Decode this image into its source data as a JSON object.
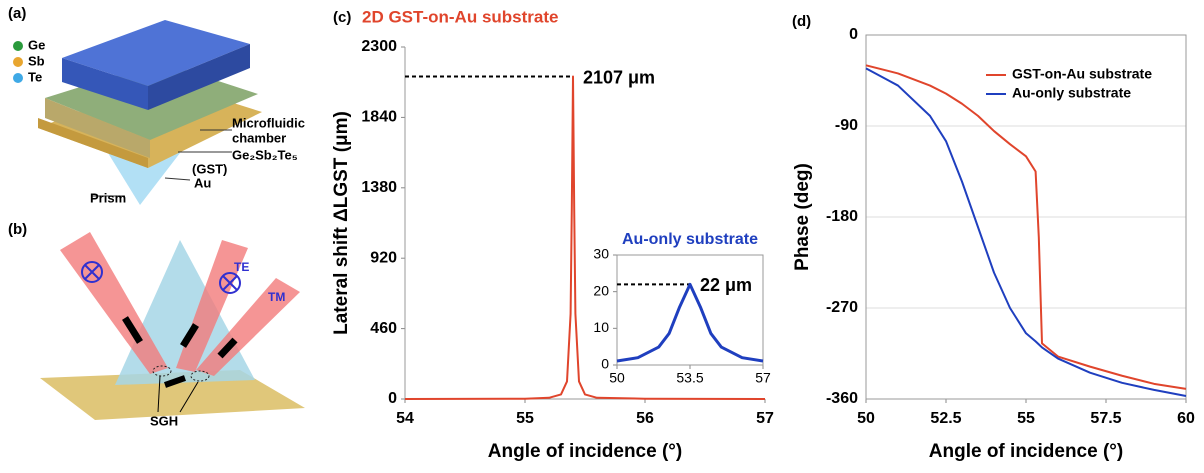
{
  "chart_data": [
    {
      "type": "line",
      "panel_label": "(c)",
      "title": "2D GST-on-Au substrate",
      "x_label": "Angle of incidence (°)",
      "y_label": "Lateral shift ΔLGST (μm)",
      "xlim": [
        54,
        57
      ],
      "xticks": [
        54,
        55,
        56,
        57
      ],
      "ylim": [
        0,
        2300
      ],
      "yticks": [
        0,
        460,
        920,
        1380,
        1840,
        2300
      ],
      "x": [
        54,
        55,
        55.2,
        55.3,
        55.35,
        55.38,
        55.39,
        55.4,
        55.41,
        55.42,
        55.45,
        55.5,
        55.6,
        56,
        57
      ],
      "series": [
        {
          "color": "#e0452c",
          "values": [
            0,
            2,
            8,
            30,
            115,
            557,
            1244,
            2107,
            1244,
            557,
            115,
            30,
            8,
            2,
            0
          ]
        }
      ],
      "annotations": [
        {
          "x": 55.4,
          "value": 2107,
          "label": "2107 μm"
        }
      ]
    },
    {
      "type": "line",
      "title": "Au-only substrate",
      "xlim": [
        50,
        57
      ],
      "xticks": [
        50,
        53.5,
        57
      ],
      "ylim": [
        0,
        30
      ],
      "yticks": [
        0,
        10,
        20,
        30
      ],
      "x": [
        50,
        51,
        52,
        52.5,
        53,
        53.5,
        54,
        54.5,
        55,
        56,
        57
      ],
      "series": [
        {
          "color": "#1f3fbf",
          "values": [
            1.1,
            2,
            4.9,
            8.6,
            15.8,
            22,
            15.8,
            8.6,
            4.9,
            2,
            1.1
          ]
        }
      ],
      "annotations": [
        {
          "x": 53.5,
          "value": 22,
          "label": "22 μm"
        }
      ]
    },
    {
      "type": "line",
      "panel_label": "(d)",
      "x_label": "Angle of incidence (°)",
      "y_label": "Phase  (deg)",
      "xlim": [
        50,
        60
      ],
      "xticks": [
        50,
        52.5,
        55,
        57.5,
        60
      ],
      "ylim": [
        -360,
        0
      ],
      "yticks": [
        -360,
        -270,
        -180,
        -90,
        0
      ],
      "grid": true,
      "legend": "upper right",
      "x": [
        50,
        51,
        52,
        52.5,
        53,
        53.5,
        54,
        54.5,
        55,
        55.3,
        55.4,
        55.5,
        56,
        57,
        58,
        59,
        60
      ],
      "series": [
        {
          "name": "GST-on-Au substrate",
          "color": "#e0452c",
          "values": [
            -30,
            -38,
            -50,
            -58,
            -68,
            -80,
            -95,
            -108,
            -120,
            -135,
            -200,
            -305,
            -318,
            -328,
            -337,
            -345,
            -350
          ]
        },
        {
          "name": "Au-only substrate",
          "color": "#1f3fbf",
          "values": [
            -33,
            -50,
            -80,
            -105,
            -145,
            -190,
            -235,
            -270,
            -295,
            -303,
            -306,
            -309,
            -320,
            -334,
            -344,
            -351,
            -357
          ]
        }
      ]
    }
  ],
  "schematic_a": {
    "label": "(a)",
    "legend": [
      "Ge",
      "Sb",
      "Te"
    ],
    "callouts": [
      [
        "Microfluidic",
        "chamber"
      ],
      [
        "Ge₂Sb₂Te₅",
        "(GST)"
      ],
      [
        "Au"
      ],
      [
        "Prism"
      ]
    ]
  },
  "schematic_b": {
    "label": "(b)",
    "modes": [
      "TE",
      "TM"
    ],
    "shift": "SGH"
  }
}
